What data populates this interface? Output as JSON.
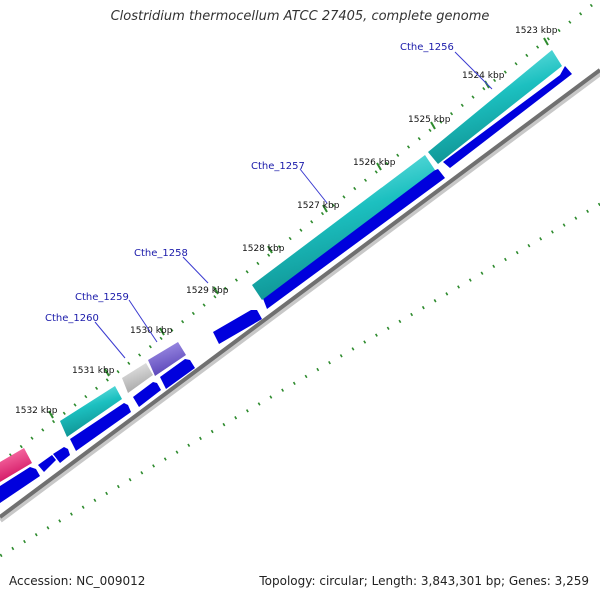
{
  "title": "Clostridium thermocellum ATCC 27405, complete genome",
  "footer": {
    "accession": "Accession: NC_009012",
    "summary": "Topology: circular; Length: 3,843,301 bp; Genes: 3,259"
  },
  "ticks": [
    "1523 kbp",
    "1524 kbp",
    "1525 kbp",
    "1526 kbp",
    "1527 kbp",
    "1528 kbp",
    "1529 kbp",
    "1530 kbp",
    "1531 kbp",
    "1532 kbp"
  ],
  "gene_labels": [
    "Cthe_1256",
    "Cthe_1257",
    "Cthe_1258",
    "Cthe_1259",
    "Cthe_1260"
  ],
  "colors": {
    "cds_blue": "#0000dd",
    "gene_teal": "#1cc0c0",
    "gene_purple": "#6a55c8",
    "gene_grey": "#b8b8b8",
    "gene_pink": "#e8186f",
    "backbone": "#707070",
    "tick_green": "#2e8b2e"
  }
}
